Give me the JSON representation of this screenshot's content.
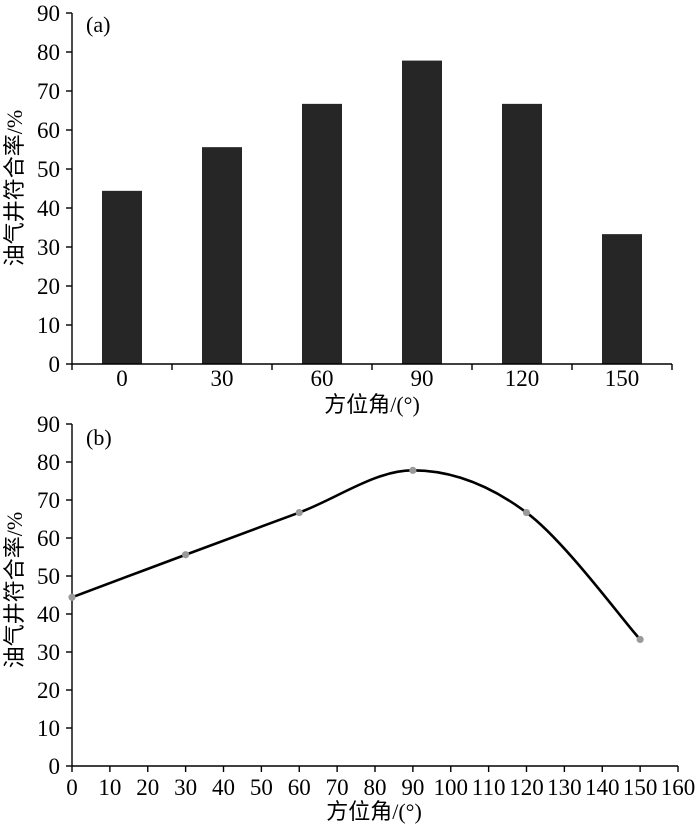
{
  "chart_data": [
    {
      "type": "bar",
      "panel_label": "(a)",
      "categories": [
        "0",
        "30",
        "60",
        "90",
        "120",
        "150"
      ],
      "values": [
        44.4,
        55.6,
        66.7,
        77.8,
        66.7,
        33.3
      ],
      "xlabel": "方位角/(°)",
      "ylabel": "油气井符合率/%",
      "ylim": [
        0,
        90
      ],
      "yticks": [
        0,
        10,
        20,
        30,
        40,
        50,
        60,
        70,
        80,
        90
      ],
      "grid": false,
      "bar_color": "#262626"
    },
    {
      "type": "line",
      "panel_label": "(b)",
      "x": [
        0,
        30,
        60,
        90,
        120,
        150
      ],
      "y": [
        44.4,
        55.6,
        66.7,
        77.8,
        66.7,
        33.3
      ],
      "xlim": [
        0,
        160
      ],
      "xticks": [
        0,
        10,
        20,
        30,
        40,
        50,
        60,
        70,
        80,
        90,
        100,
        110,
        120,
        130,
        140,
        150,
        160
      ],
      "ylim": [
        0,
        90
      ],
      "yticks": [
        0,
        10,
        20,
        30,
        40,
        50,
        60,
        70,
        80,
        90
      ],
      "xlabel": "方位角/(°)",
      "ylabel": "油气井符合率/%",
      "grid": false,
      "smooth": true,
      "line_color": "#000000",
      "marker_color": "#9a9a9a"
    }
  ]
}
